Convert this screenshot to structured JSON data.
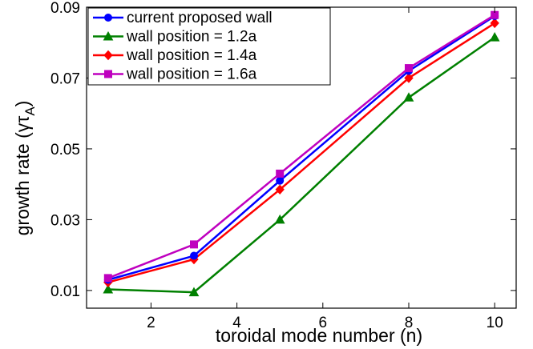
{
  "chart_data": {
    "type": "line",
    "xlabel": "toroidal mode number (n)",
    "ylabel": "growth rate (γτ",
    "ylabel_sub": "A",
    "ylabel_close": ")",
    "xlim": [
      0.5,
      10.5
    ],
    "ylim": [
      0.005,
      0.09
    ],
    "xticks": [
      2,
      4,
      6,
      8,
      10
    ],
    "yticks": [
      0.01,
      0.03,
      0.05,
      0.07,
      0.09
    ],
    "x": [
      1,
      3,
      5,
      8,
      10
    ],
    "grid": false,
    "legend_position": "top-left",
    "series": [
      {
        "name": "current proposed wall",
        "color": "#0000ff",
        "marker": "circle",
        "values": [
          0.013,
          0.0198,
          0.041,
          0.072,
          0.0875
        ]
      },
      {
        "name": "wall position = 1.2a",
        "color": "#008000",
        "marker": "triangle",
        "values": [
          0.0103,
          0.0095,
          0.03,
          0.0645,
          0.0815
        ]
      },
      {
        "name": "wall position = 1.4a",
        "color": "#ff0000",
        "marker": "diamond",
        "values": [
          0.0123,
          0.0188,
          0.0385,
          0.07,
          0.0855
        ]
      },
      {
        "name": "wall position = 1.6a",
        "color": "#bf00bf",
        "marker": "square",
        "values": [
          0.0135,
          0.023,
          0.043,
          0.0728,
          0.0878
        ]
      }
    ]
  }
}
